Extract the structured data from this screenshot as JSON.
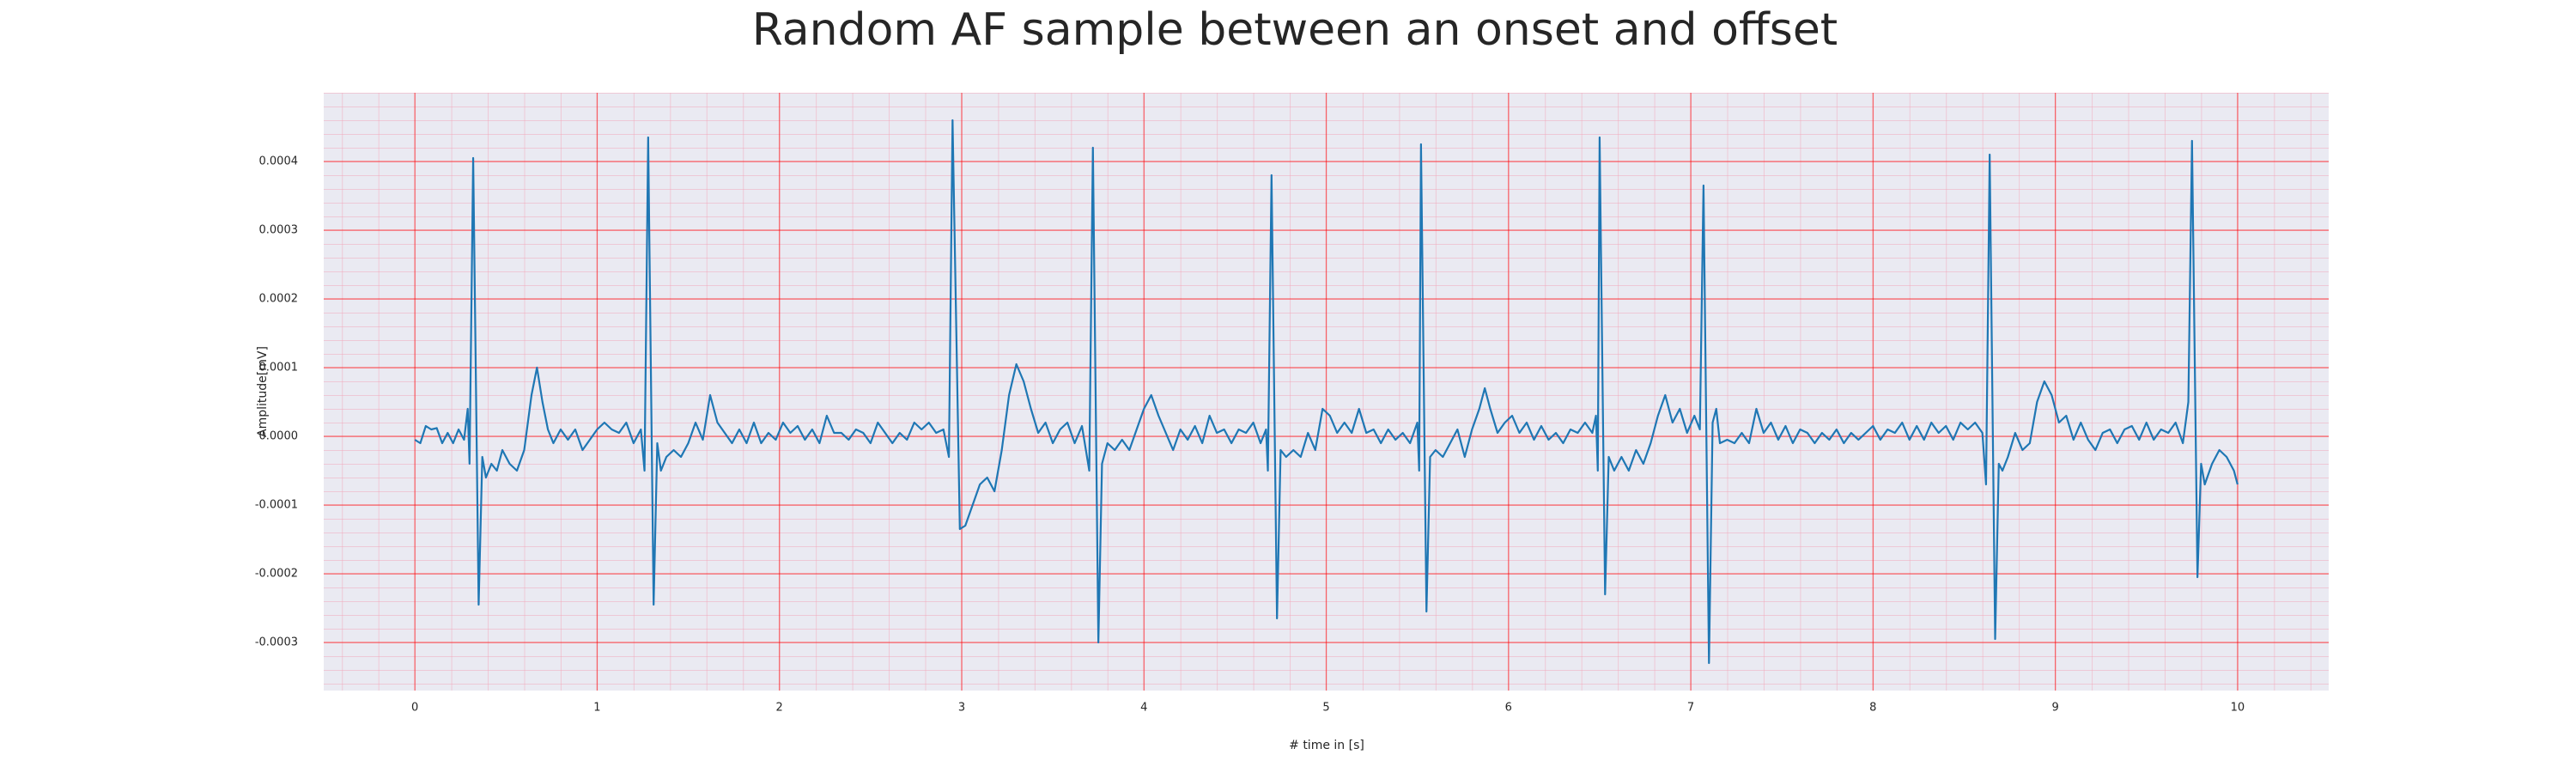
{
  "chart_data": {
    "type": "line",
    "title": "Random AF sample between an onset and offset",
    "x_label": "# time in [s]",
    "y_label": "Amplitude[mV]",
    "color": "#1f77b4",
    "grid": true,
    "xlim": [
      -0.5,
      10.5
    ],
    "ylim": [
      -0.00037,
      0.0005
    ],
    "xticks": [
      0,
      1,
      2,
      3,
      4,
      5,
      6,
      7,
      8,
      9,
      10
    ],
    "yticks": [
      -0.0003,
      -0.0002,
      -0.0001,
      {
        "value": 0,
        "label": "0.0000"
      },
      0.0001,
      0.0002,
      0.0003,
      0.0004
    ],
    "x": [
      0.0,
      0.03,
      0.06,
      0.09,
      0.12,
      0.15,
      0.18,
      0.21,
      0.24,
      0.27,
      0.29,
      0.3,
      0.32,
      0.35,
      0.37,
      0.39,
      0.42,
      0.45,
      0.48,
      0.52,
      0.56,
      0.6,
      0.64,
      0.67,
      0.7,
      0.73,
      0.76,
      0.8,
      0.84,
      0.88,
      0.92,
      0.96,
      1.0,
      1.04,
      1.08,
      1.12,
      1.16,
      1.2,
      1.24,
      1.26,
      1.28,
      1.31,
      1.33,
      1.35,
      1.38,
      1.42,
      1.46,
      1.5,
      1.54,
      1.58,
      1.62,
      1.66,
      1.7,
      1.74,
      1.78,
      1.82,
      1.86,
      1.9,
      1.94,
      1.98,
      2.02,
      2.06,
      2.1,
      2.14,
      2.18,
      2.22,
      2.26,
      2.3,
      2.34,
      2.38,
      2.42,
      2.46,
      2.5,
      2.54,
      2.58,
      2.62,
      2.66,
      2.7,
      2.74,
      2.78,
      2.82,
      2.86,
      2.9,
      2.93,
      2.95,
      2.99,
      3.02,
      3.06,
      3.1,
      3.14,
      3.18,
      3.22,
      3.26,
      3.3,
      3.34,
      3.38,
      3.42,
      3.46,
      3.5,
      3.54,
      3.58,
      3.62,
      3.66,
      3.7,
      3.72,
      3.75,
      3.77,
      3.8,
      3.84,
      3.88,
      3.92,
      3.96,
      4.0,
      4.04,
      4.08,
      4.12,
      4.16,
      4.2,
      4.24,
      4.28,
      4.32,
      4.36,
      4.4,
      4.44,
      4.48,
      4.52,
      4.56,
      4.6,
      4.64,
      4.67,
      4.68,
      4.7,
      4.73,
      4.75,
      4.78,
      4.82,
      4.86,
      4.9,
      4.94,
      4.98,
      5.02,
      5.06,
      5.1,
      5.14,
      5.18,
      5.22,
      5.26,
      5.3,
      5.34,
      5.38,
      5.42,
      5.46,
      5.5,
      5.51,
      5.52,
      5.55,
      5.57,
      5.6,
      5.64,
      5.68,
      5.72,
      5.76,
      5.8,
      5.84,
      5.87,
      5.9,
      5.94,
      5.98,
      6.02,
      6.06,
      6.1,
      6.14,
      6.18,
      6.22,
      6.26,
      6.3,
      6.34,
      6.38,
      6.42,
      6.46,
      6.48,
      6.49,
      6.5,
      6.53,
      6.55,
      6.58,
      6.62,
      6.66,
      6.7,
      6.74,
      6.78,
      6.82,
      6.86,
      6.9,
      6.94,
      6.98,
      7.02,
      7.05,
      7.07,
      7.1,
      7.12,
      7.14,
      7.16,
      7.2,
      7.24,
      7.28,
      7.32,
      7.36,
      7.4,
      7.44,
      7.48,
      7.52,
      7.56,
      7.6,
      7.64,
      7.68,
      7.72,
      7.76,
      7.8,
      7.84,
      7.88,
      7.92,
      7.96,
      8.0,
      8.04,
      8.08,
      8.12,
      8.16,
      8.2,
      8.24,
      8.28,
      8.32,
      8.36,
      8.4,
      8.44,
      8.48,
      8.52,
      8.56,
      8.6,
      8.62,
      8.64,
      8.67,
      8.69,
      8.71,
      8.74,
      8.78,
      8.82,
      8.86,
      8.9,
      8.94,
      8.98,
      9.02,
      9.06,
      9.1,
      9.14,
      9.18,
      9.22,
      9.26,
      9.3,
      9.34,
      9.38,
      9.42,
      9.46,
      9.5,
      9.54,
      9.58,
      9.62,
      9.66,
      9.7,
      9.73,
      9.75,
      9.78,
      9.8,
      9.82,
      9.86,
      9.9,
      9.94,
      9.98,
      10.0
    ],
    "values": [
      -5e-06,
      -1e-05,
      1.5e-05,
      1e-05,
      1.2e-05,
      -1e-05,
      5e-06,
      -1e-05,
      1e-05,
      -5e-06,
      4e-05,
      -4e-05,
      0.000405,
      -0.000245,
      -3e-05,
      -6e-05,
      -4e-05,
      -5e-05,
      -2e-05,
      -4e-05,
      -5e-05,
      -2e-05,
      6e-05,
      0.0001,
      5e-05,
      1e-05,
      -1e-05,
      1e-05,
      -5e-06,
      1e-05,
      -2e-05,
      -5e-06,
      1e-05,
      2e-05,
      1e-05,
      5e-06,
      2e-05,
      -1e-05,
      1e-05,
      -5e-05,
      0.000435,
      -0.000245,
      -1e-05,
      -5e-05,
      -3e-05,
      -2e-05,
      -3e-05,
      -1e-05,
      2e-05,
      -5e-06,
      6e-05,
      2e-05,
      5e-06,
      -1e-05,
      1e-05,
      -1e-05,
      2e-05,
      -1e-05,
      5e-06,
      -5e-06,
      2e-05,
      5e-06,
      1.5e-05,
      -5e-06,
      1e-05,
      -1e-05,
      3e-05,
      5e-06,
      5e-06,
      -5e-06,
      1e-05,
      5e-06,
      -1e-05,
      2e-05,
      5e-06,
      -1e-05,
      5e-06,
      -5e-06,
      2e-05,
      1e-05,
      2e-05,
      5e-06,
      1e-05,
      -3e-05,
      0.00046,
      -0.000135,
      -0.00013,
      -0.0001,
      -7e-05,
      -6e-05,
      -8e-05,
      -2e-05,
      6e-05,
      0.000105,
      8e-05,
      4e-05,
      5e-06,
      2e-05,
      -1e-05,
      1e-05,
      2e-05,
      -1e-05,
      1.5e-05,
      -5e-05,
      0.00042,
      -0.0003,
      -4e-05,
      -1e-05,
      -2e-05,
      -5e-06,
      -2e-05,
      1e-05,
      4e-05,
      6e-05,
      3e-05,
      5e-06,
      -2e-05,
      1e-05,
      -5e-06,
      1.5e-05,
      -1e-05,
      3e-05,
      5e-06,
      1e-05,
      -1e-05,
      1e-05,
      5e-06,
      2e-05,
      -1e-05,
      1e-05,
      -5e-05,
      0.00038,
      -0.000265,
      -2e-05,
      -3e-05,
      -2e-05,
      -3e-05,
      5e-06,
      -2e-05,
      4e-05,
      3e-05,
      5e-06,
      2e-05,
      5e-06,
      4e-05,
      5e-06,
      1e-05,
      -1e-05,
      1e-05,
      -5e-06,
      5e-06,
      -1e-05,
      2e-05,
      -5e-05,
      0.000425,
      -0.000255,
      -3e-05,
      -2e-05,
      -3e-05,
      -1e-05,
      1e-05,
      -3e-05,
      1e-05,
      4e-05,
      7e-05,
      4e-05,
      5e-06,
      2e-05,
      3e-05,
      5e-06,
      2e-05,
      -5e-06,
      1.5e-05,
      -5e-06,
      5e-06,
      -1e-05,
      1e-05,
      5e-06,
      2e-05,
      5e-06,
      3e-05,
      -5e-05,
      0.000435,
      -0.00023,
      -3e-05,
      -5e-05,
      -3e-05,
      -5e-05,
      -2e-05,
      -4e-05,
      -1e-05,
      3e-05,
      6e-05,
      2e-05,
      4e-05,
      5e-06,
      3e-05,
      1e-05,
      0.000365,
      -0.00033,
      2e-05,
      4e-05,
      -1e-05,
      -5e-06,
      -1e-05,
      5e-06,
      -1e-05,
      4e-05,
      5e-06,
      2e-05,
      -5e-06,
      1.5e-05,
      -1e-05,
      1e-05,
      5e-06,
      -1e-05,
      5e-06,
      -5e-06,
      1e-05,
      -1e-05,
      5e-06,
      -5e-06,
      5e-06,
      1.5e-05,
      -5e-06,
      1e-05,
      5e-06,
      2e-05,
      -5e-06,
      1.5e-05,
      -5e-06,
      2e-05,
      5e-06,
      1.5e-05,
      -5e-06,
      2e-05,
      1e-05,
      2e-05,
      5e-06,
      -7e-05,
      0.00041,
      -0.000295,
      -4e-05,
      -5e-05,
      -3e-05,
      5e-06,
      -2e-05,
      -1e-05,
      5e-05,
      8e-05,
      6e-05,
      2e-05,
      3e-05,
      -5e-06,
      2e-05,
      -5e-06,
      -2e-05,
      5e-06,
      1e-05,
      -1e-05,
      1e-05,
      1.5e-05,
      -5e-06,
      2e-05,
      -5e-06,
      1e-05,
      5e-06,
      2e-05,
      -1e-05,
      5e-05,
      0.00043,
      -0.000205,
      -4e-05,
      -7e-05,
      -4e-05,
      -2e-05,
      -3e-05,
      -5e-05,
      -7e-05
    ]
  }
}
